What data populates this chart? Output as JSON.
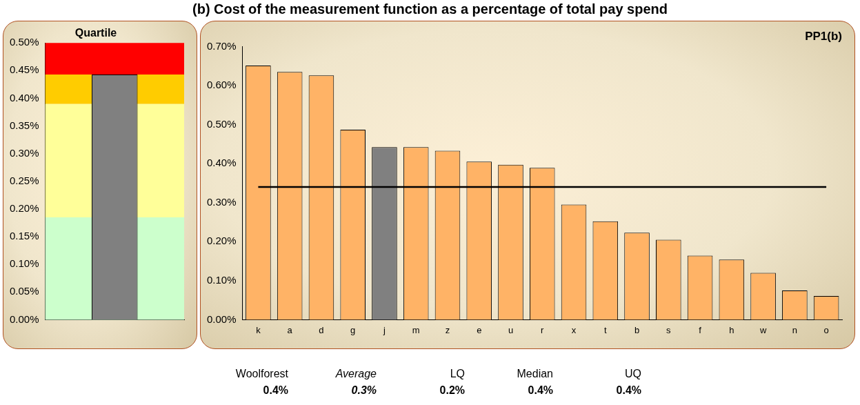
{
  "chart_data": [
    {
      "type": "bar",
      "title": "Quartile",
      "categories": [
        null
      ],
      "values": [
        0.443
      ],
      "color": "#808080",
      "ylim": [
        0,
        0.5
      ],
      "yticks": [
        {
          "value": 0,
          "label": "0.00%"
        },
        {
          "value": 0.05,
          "label": "0.05%"
        },
        {
          "value": 0.1,
          "label": "0.10%"
        },
        {
          "value": 0.15,
          "label": "0.15%"
        },
        {
          "value": 0.2,
          "label": "0.20%"
        },
        {
          "value": 0.25,
          "label": "0.25%"
        },
        {
          "value": 0.3,
          "label": "0.30%"
        },
        {
          "value": 0.35,
          "label": "0.35%"
        },
        {
          "value": 0.4,
          "label": "0.40%"
        },
        {
          "value": 0.45,
          "label": "0.45%"
        },
        {
          "value": 0.5,
          "label": "0.50%"
        }
      ],
      "bands": [
        {
          "axis": "y",
          "from": 0,
          "to": 0.185,
          "color": "#ccffcc"
        },
        {
          "axis": "y",
          "from": 0.185,
          "to": 0.39,
          "color": "#ffff99"
        },
        {
          "axis": "y",
          "from": 0.39,
          "to": 0.443,
          "color": "#ffcc00"
        },
        {
          "axis": "y",
          "from": 0.443,
          "to": 0.5,
          "color": "#ff0000"
        }
      ]
    },
    {
      "type": "bar",
      "title": "(b) Cost of the measurement function as a percentage of total pay spend",
      "subtitle": "PP1(b)",
      "categories": [
        "k",
        "a",
        "d",
        "g",
        "j",
        "m",
        "z",
        "e",
        "u",
        "r",
        "x",
        "t",
        "b",
        "s",
        "f",
        "h",
        "w",
        "n",
        "o"
      ],
      "values": [
        0.651,
        0.635,
        0.626,
        0.487,
        0.442,
        0.442,
        0.433,
        0.405,
        0.397,
        0.389,
        0.295,
        0.252,
        0.223,
        0.205,
        0.164,
        0.154,
        0.12,
        0.075,
        0.061
      ],
      "colors": [
        "#ffb366",
        "#ffb366",
        "#ffb366",
        "#ffb366",
        "#808080",
        "#ffb366",
        "#ffb366",
        "#ffb366",
        "#ffb366",
        "#ffb366",
        "#ffb366",
        "#ffb366",
        "#ffb366",
        "#ffb366",
        "#ffb366",
        "#ffb366",
        "#ffb366",
        "#ffb366",
        "#ffb366"
      ],
      "ylim": [
        0,
        0.7
      ],
      "yticks": [
        {
          "value": 0,
          "label": "0.00%"
        },
        {
          "value": 0.1,
          "label": "0.10%"
        },
        {
          "value": 0.2,
          "label": "0.20%"
        },
        {
          "value": 0.3,
          "label": "0.30%"
        },
        {
          "value": 0.4,
          "label": "0.40%"
        },
        {
          "value": 0.5,
          "label": "0.50%"
        },
        {
          "value": 0.6,
          "label": "0.60%"
        },
        {
          "value": 0.7,
          "label": "0.70%"
        }
      ],
      "ref_lines": [
        {
          "axis": "y",
          "value": 0.34,
          "color": "#000000"
        }
      ],
      "annotations": [
        "Woolforest",
        "Average",
        "LQ",
        "Median",
        "UQ",
        "0.4%",
        "0.3%",
        "0.2%",
        "0.4%",
        "0.4%"
      ]
    }
  ]
}
